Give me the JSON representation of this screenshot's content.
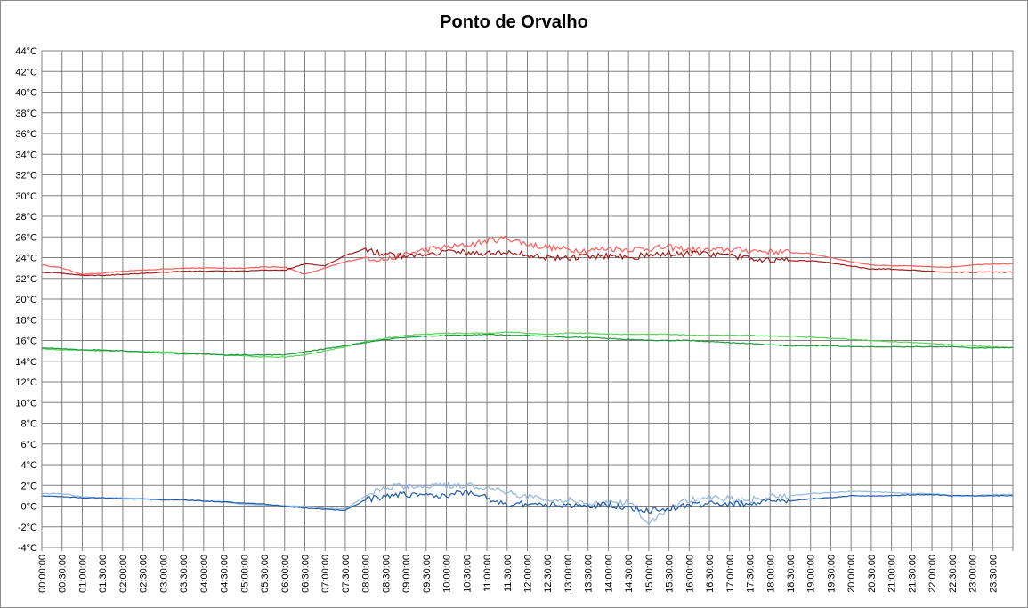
{
  "chart_data": {
    "type": "line",
    "title": "Ponto de Orvalho",
    "xlabel": "",
    "ylabel": "",
    "ylim": [
      -4,
      44
    ],
    "y_ticks": [
      "-4°C",
      "-2°C",
      "0°C",
      "2°C",
      "4°C",
      "6°C",
      "8°C",
      "10°C",
      "12°C",
      "14°C",
      "16°C",
      "18°C",
      "20°C",
      "22°C",
      "24°C",
      "26°C",
      "28°C",
      "30°C",
      "32°C",
      "34°C",
      "36°C",
      "38°C",
      "40°C",
      "42°C",
      "44°C"
    ],
    "x_ticks": [
      "00:00:00",
      "00:30:00",
      "01:00:00",
      "01:30:00",
      "02:00:00",
      "02:30:00",
      "03:00:00",
      "03:30:00",
      "04:00:00",
      "04:30:00",
      "05:00:00",
      "05:30:00",
      "06:00:00",
      "06:30:00",
      "07:00:00",
      "07:30:00",
      "08:00:00",
      "08:30:00",
      "09:00:00",
      "09:30:00",
      "10:00:00",
      "10:30:00",
      "11:00:00",
      "11:30:00",
      "12:00:00",
      "12:30:00",
      "13:00:00",
      "13:30:00",
      "14:00:00",
      "14:30:00",
      "15:00:00",
      "15:30:00",
      "16:00:00",
      "16:30:00",
      "17:00:00",
      "17:30:00",
      "18:00:00",
      "18:30:00",
      "19:00:00",
      "19:30:00",
      "20:00:00",
      "20:30:00",
      "21:00:00",
      "21:30:00",
      "22:00:00",
      "22:30:00",
      "23:00:00",
      "23:30:00"
    ],
    "grid": true,
    "legend": "none",
    "x_hours": [
      0,
      0.5,
      1,
      1.5,
      2,
      2.5,
      3,
      3.5,
      4,
      4.5,
      5,
      5.5,
      6,
      6.5,
      7,
      7.5,
      8,
      8.5,
      9,
      9.5,
      10,
      10.5,
      11,
      11.5,
      12,
      12.5,
      13,
      13.5,
      14,
      14.5,
      15,
      15.5,
      16,
      16.5,
      17,
      17.5,
      18,
      18.5,
      19,
      19.5,
      20,
      20.5,
      21,
      21.5,
      22,
      22.5,
      23,
      23.5,
      24
    ],
    "series": [
      {
        "color": "#ff5a5a",
        "values": [
          23.3,
          23.0,
          22.4,
          22.5,
          22.7,
          22.8,
          22.9,
          23.0,
          23.0,
          23.0,
          23.0,
          23.1,
          23.1,
          22.4,
          23.0,
          23.6,
          24.0,
          23.8,
          24.3,
          24.8,
          25.0,
          25.2,
          25.6,
          25.9,
          25.3,
          25.0,
          24.8,
          24.7,
          24.9,
          24.8,
          24.9,
          25.0,
          24.8,
          24.7,
          24.8,
          24.7,
          24.6,
          24.5,
          24.4,
          24.0,
          23.6,
          23.3,
          23.2,
          23.2,
          23.1,
          23.1,
          23.3,
          23.4,
          23.4
        ]
      },
      {
        "color": "#a01c1c",
        "values": [
          22.6,
          22.5,
          22.3,
          22.3,
          22.4,
          22.5,
          22.6,
          22.7,
          22.7,
          22.7,
          22.7,
          22.8,
          22.8,
          23.4,
          23.2,
          24.2,
          24.9,
          24.3,
          24.1,
          24.4,
          24.6,
          24.5,
          24.4,
          24.5,
          24.3,
          24.0,
          24.0,
          24.1,
          24.2,
          24.1,
          24.2,
          24.4,
          24.4,
          24.3,
          24.2,
          23.9,
          23.8,
          23.7,
          23.7,
          23.5,
          23.2,
          22.9,
          22.9,
          22.8,
          22.7,
          22.6,
          22.6,
          22.6,
          22.6
        ]
      },
      {
        "color": "#59d259",
        "values": [
          15.2,
          15.1,
          15.1,
          15.0,
          15.0,
          14.9,
          14.9,
          14.8,
          14.7,
          14.6,
          14.5,
          14.4,
          14.4,
          14.6,
          15.0,
          15.4,
          15.9,
          16.2,
          16.5,
          16.6,
          16.7,
          16.7,
          16.7,
          16.8,
          16.7,
          16.6,
          16.7,
          16.7,
          16.6,
          16.6,
          16.6,
          16.6,
          16.5,
          16.5,
          16.5,
          16.5,
          16.4,
          16.4,
          16.3,
          16.2,
          16.1,
          16.0,
          15.9,
          15.8,
          15.7,
          15.6,
          15.5,
          15.4,
          15.3
        ]
      },
      {
        "color": "#1a9a3a",
        "values": [
          15.3,
          15.2,
          15.1,
          15.1,
          15.0,
          14.9,
          14.8,
          14.7,
          14.7,
          14.6,
          14.6,
          14.6,
          14.6,
          14.9,
          15.2,
          15.5,
          15.8,
          16.1,
          16.3,
          16.4,
          16.5,
          16.5,
          16.6,
          16.5,
          16.5,
          16.4,
          16.3,
          16.3,
          16.2,
          16.1,
          16.0,
          16.0,
          16.0,
          15.9,
          15.8,
          15.7,
          15.6,
          15.5,
          15.5,
          15.5,
          15.4,
          15.4,
          15.4,
          15.4,
          15.4,
          15.4,
          15.3,
          15.3,
          15.3
        ]
      },
      {
        "color": "#93b6e0",
        "values": [
          1.2,
          1.2,
          0.9,
          0.8,
          0.8,
          0.7,
          0.6,
          0.6,
          0.5,
          0.4,
          0.2,
          0.1,
          0.0,
          0.0,
          -0.2,
          -0.3,
          1.0,
          1.8,
          1.9,
          1.9,
          2.0,
          2.0,
          1.8,
          1.4,
          0.9,
          0.6,
          0.6,
          0.2,
          0.3,
          0.4,
          -1.6,
          -0.2,
          0.6,
          0.8,
          0.7,
          0.6,
          0.9,
          1.0,
          1.2,
          1.3,
          1.4,
          1.4,
          1.3,
          1.2,
          1.2,
          1.0,
          1.0,
          1.1,
          1.1
        ]
      },
      {
        "color": "#1e5aa8",
        "values": [
          1.0,
          0.9,
          0.8,
          0.8,
          0.7,
          0.7,
          0.6,
          0.6,
          0.5,
          0.4,
          0.3,
          0.2,
          0.0,
          -0.2,
          -0.3,
          -0.4,
          0.6,
          1.0,
          1.1,
          1.0,
          1.1,
          1.3,
          0.8,
          0.2,
          0.2,
          0.1,
          0.1,
          0.0,
          0.1,
          -0.1,
          -0.5,
          -0.2,
          0.1,
          0.2,
          0.2,
          0.3,
          0.4,
          0.5,
          0.7,
          0.8,
          1.0,
          1.0,
          1.0,
          1.1,
          1.1,
          1.0,
          1.0,
          1.0,
          1.0
        ]
      }
    ]
  }
}
